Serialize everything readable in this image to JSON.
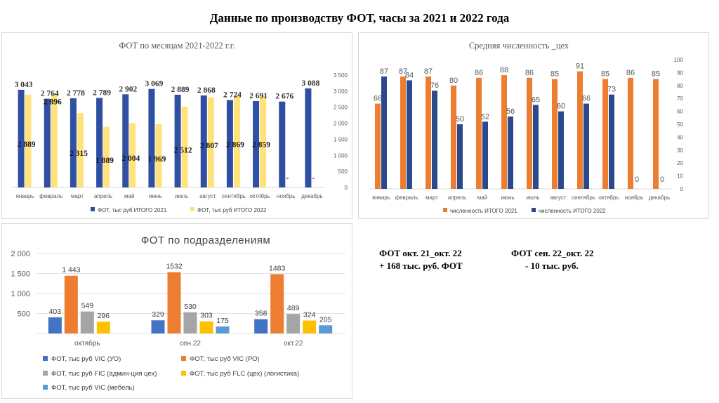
{
  "page": {
    "title": "Данные по производству ФОТ, часы за 2021 и 2022 года"
  },
  "colors": {
    "blue_dark": "#2F4FA2",
    "yellow_light": "#FFE27A",
    "orange": "#ED7D31",
    "navy": "#2A4A8C",
    "blue": "#4472C4",
    "gray": "#A5A5A5",
    "gold": "#FFC000",
    "sky": "#5B9BD5"
  },
  "notes": {
    "left_line1": "ФОТ окт. 21_окт. 22",
    "left_line2": "+ 168 тыс. руб. ФОТ",
    "right_line1": "ФОТ сен. 22_окт.  22",
    "right_line2": "- 10 тыс. руб."
  },
  "chart_data": [
    {
      "type": "bar",
      "title": "ФОТ по месяцам 2021-2022  г.г.",
      "categories": [
        "январь",
        "февраль",
        "март",
        "апрель",
        "май",
        "июнь",
        "июль",
        "август",
        "сентябрь",
        "октябрь",
        "ноябрь",
        "декабрь"
      ],
      "series": [
        {
          "name": "ФОТ, тыс руб ИТОГО 2021",
          "values": [
            3043,
            2764,
            2778,
            2789,
            2902,
            3069,
            2889,
            2868,
            2724,
            2691,
            2676,
            3088
          ],
          "labels": [
            "3 043",
            "2 764",
            "2 778",
            "2 789",
            "2 902",
            "3 069",
            "2 889",
            "2 868",
            "2 724",
            "2 691",
            "2 676",
            "3 088"
          ]
        },
        {
          "name": "ФОТ, тыс руб ИТОГО 2022",
          "values": [
            2889,
            2896,
            2315,
            1889,
            2004,
            1969,
            2512,
            2807,
            2869,
            2859,
            0,
            0
          ],
          "labels": [
            "2 889",
            "2 896",
            "2 315",
            "1 889",
            "2 004",
            "1 969",
            "2 512",
            "2 807",
            "2 869",
            "2 859",
            "-",
            "-"
          ]
        }
      ],
      "y_ticks": [
        "0",
        "500",
        "1 000",
        "1 500",
        "2 000",
        "2 500",
        "3 000",
        "3 500"
      ],
      "ylim": [
        0,
        3500
      ],
      "legend": "bottom"
    },
    {
      "type": "bar",
      "title": "Средняя численность _цех",
      "categories": [
        "январь",
        "февраль",
        "март",
        "апрель",
        "май",
        "июнь",
        "июль",
        "август",
        "сентябрь",
        "октябрь",
        "ноябрь",
        "декабрь"
      ],
      "series": [
        {
          "name": "численность ИТОГО 2021",
          "values": [
            66,
            87,
            87,
            80,
            86,
            88,
            86,
            85,
            91,
            85,
            86,
            85
          ]
        },
        {
          "name": "численность ИТОГО 2022",
          "values": [
            87,
            84,
            76,
            50,
            52,
            56,
            65,
            60,
            66,
            73,
            0,
            0
          ]
        }
      ],
      "y_ticks": [
        "0",
        "10",
        "20",
        "30",
        "40",
        "50",
        "60",
        "70",
        "80",
        "90",
        "100"
      ],
      "ylim": [
        0,
        100
      ],
      "legend": "bottom"
    },
    {
      "type": "bar",
      "title": "ФОТ по подразделениям",
      "categories": [
        "октябрь",
        "сен.22",
        "окт.22"
      ],
      "series": [
        {
          "name": "ФОТ, тыс руб VIC (УО)",
          "values": [
            403,
            329,
            358
          ],
          "labels": [
            "403",
            "329",
            "358"
          ]
        },
        {
          "name": "ФОТ, тыс руб VIC (РО)",
          "values": [
            1443,
            1532,
            1483
          ],
          "labels": [
            "1 443",
            "1532",
            "1483"
          ]
        },
        {
          "name": "ФОТ, тыс руб FIC (админ-ция цех)",
          "values": [
            549,
            530,
            489
          ],
          "labels": [
            "549",
            "530",
            "489"
          ]
        },
        {
          "name": "ФОТ, тыс руб FLC (цех) (логистика)",
          "values": [
            296,
            303,
            324
          ],
          "labels": [
            "296",
            "303",
            "324"
          ]
        },
        {
          "name": "ФОТ, тыс руб VIC (мебель)",
          "values": [
            0,
            175,
            205
          ],
          "labels": [
            "",
            "175",
            "205"
          ]
        }
      ],
      "y_ticks": [
        "",
        "500",
        "1 000",
        "1 500",
        "2 000"
      ],
      "ylim": [
        0,
        2000
      ],
      "legend": "bottom"
    }
  ]
}
